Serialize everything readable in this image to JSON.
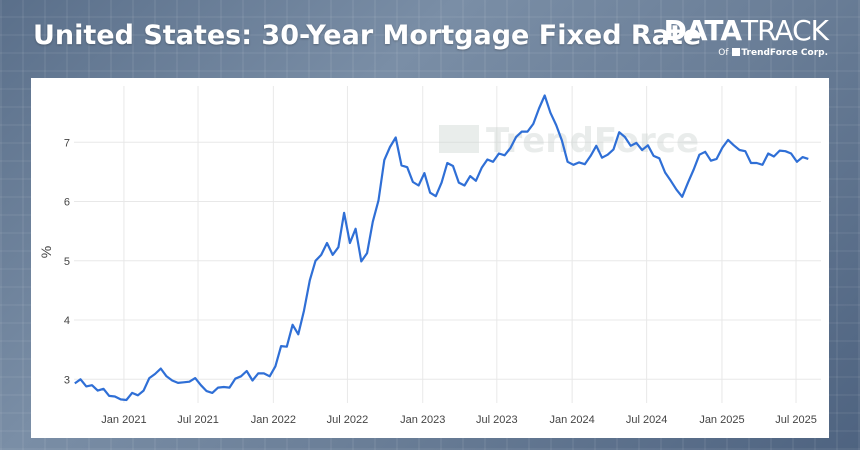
{
  "header": {
    "title": "United States: 30-Year Mortgage Fixed Rate"
  },
  "brand": {
    "name_bold": "DATA",
    "name_light": "TRACK",
    "tagline_prefix": "Of",
    "tagline_corp": "TrendForce Corp."
  },
  "watermark": "TrendForce",
  "colors": {
    "line": "#2f6fd6",
    "grid": "#e8e8e8",
    "accent_brand": "#ffffff"
  },
  "chart_data": {
    "type": "line",
    "title": "United States: 30-Year Mortgage Fixed Rate",
    "xlabel": "",
    "ylabel": "%",
    "ylim": [
      2.6,
      7.95
    ],
    "xlim": [
      "2020-09-01",
      "2025-08-31"
    ],
    "grid": true,
    "x_ticks": [
      {
        "date": "2021-01-01",
        "label": "Jan 2021"
      },
      {
        "date": "2021-07-01",
        "label": "Jul 2021"
      },
      {
        "date": "2022-01-01",
        "label": "Jan 2022"
      },
      {
        "date": "2022-07-01",
        "label": "Jul 2022"
      },
      {
        "date": "2023-01-01",
        "label": "Jan 2023"
      },
      {
        "date": "2023-07-01",
        "label": "Jul 2023"
      },
      {
        "date": "2024-01-01",
        "label": "Jan 2024"
      },
      {
        "date": "2024-07-01",
        "label": "Jul 2024"
      },
      {
        "date": "2025-01-01",
        "label": "Jan 2025"
      },
      {
        "date": "2025-07-01",
        "label": "Jul 2025"
      }
    ],
    "y_ticks": [
      3,
      4,
      5,
      6,
      7
    ],
    "series": [
      {
        "color": "#2f6fd6",
        "x": [
          "2020-09-03",
          "2020-09-17",
          "2020-10-01",
          "2020-10-15",
          "2020-10-29",
          "2020-11-12",
          "2020-11-26",
          "2020-12-10",
          "2020-12-24",
          "2021-01-07",
          "2021-01-21",
          "2021-02-04",
          "2021-02-18",
          "2021-03-04",
          "2021-03-18",
          "2021-04-01",
          "2021-04-15",
          "2021-04-29",
          "2021-05-13",
          "2021-05-27",
          "2021-06-10",
          "2021-06-24",
          "2021-07-08",
          "2021-07-22",
          "2021-08-05",
          "2021-08-19",
          "2021-09-02",
          "2021-09-16",
          "2021-09-30",
          "2021-10-14",
          "2021-10-28",
          "2021-11-11",
          "2021-11-25",
          "2021-12-09",
          "2021-12-23",
          "2022-01-06",
          "2022-01-20",
          "2022-02-03",
          "2022-02-17",
          "2022-03-03",
          "2022-03-17",
          "2022-03-31",
          "2022-04-14",
          "2022-04-28",
          "2022-05-12",
          "2022-05-26",
          "2022-06-09",
          "2022-06-23",
          "2022-07-07",
          "2022-07-21",
          "2022-08-04",
          "2022-08-18",
          "2022-09-01",
          "2022-09-15",
          "2022-09-29",
          "2022-10-13",
          "2022-10-27",
          "2022-11-10",
          "2022-11-24",
          "2022-12-08",
          "2022-12-22",
          "2023-01-05",
          "2023-01-19",
          "2023-02-02",
          "2023-02-16",
          "2023-03-02",
          "2023-03-16",
          "2023-03-30",
          "2023-04-13",
          "2023-04-27",
          "2023-05-11",
          "2023-05-25",
          "2023-06-08",
          "2023-06-22",
          "2023-07-06",
          "2023-07-20",
          "2023-08-03",
          "2023-08-17",
          "2023-08-31",
          "2023-09-14",
          "2023-09-28",
          "2023-10-12",
          "2023-10-26",
          "2023-11-09",
          "2023-11-23",
          "2023-12-07",
          "2023-12-21",
          "2024-01-04",
          "2024-01-18",
          "2024-02-01",
          "2024-02-15",
          "2024-02-29",
          "2024-03-14",
          "2024-03-28",
          "2024-04-11",
          "2024-04-25",
          "2024-05-09",
          "2024-05-23",
          "2024-06-06",
          "2024-06-20",
          "2024-07-04",
          "2024-07-18",
          "2024-08-01",
          "2024-08-15",
          "2024-08-29",
          "2024-09-12",
          "2024-09-26",
          "2024-10-10",
          "2024-10-24",
          "2024-11-07",
          "2024-11-21",
          "2024-12-05",
          "2024-12-19",
          "2025-01-02",
          "2025-01-16",
          "2025-01-30",
          "2025-02-13",
          "2025-02-27",
          "2025-03-13",
          "2025-03-27",
          "2025-04-10",
          "2025-04-24",
          "2025-05-08",
          "2025-05-22",
          "2025-06-05",
          "2025-06-19",
          "2025-07-03",
          "2025-07-17",
          "2025-07-31"
        ],
        "y": [
          2.93,
          3.0,
          2.88,
          2.9,
          2.81,
          2.84,
          2.72,
          2.71,
          2.66,
          2.65,
          2.77,
          2.73,
          2.81,
          3.02,
          3.09,
          3.18,
          3.05,
          2.98,
          2.94,
          2.95,
          2.96,
          3.02,
          2.9,
          2.8,
          2.77,
          2.86,
          2.87,
          2.86,
          3.01,
          3.05,
          3.14,
          2.98,
          3.1,
          3.1,
          3.05,
          3.22,
          3.56,
          3.55,
          3.92,
          3.76,
          4.16,
          4.67,
          5.0,
          5.1,
          5.3,
          5.1,
          5.23,
          5.81,
          5.3,
          5.54,
          4.99,
          5.13,
          5.66,
          6.02,
          6.7,
          6.92,
          7.08,
          6.61,
          6.58,
          6.33,
          6.27,
          6.48,
          6.15,
          6.09,
          6.32,
          6.65,
          6.6,
          6.32,
          6.27,
          6.43,
          6.35,
          6.57,
          6.71,
          6.67,
          6.81,
          6.78,
          6.9,
          7.09,
          7.18,
          7.18,
          7.31,
          7.57,
          7.79,
          7.5,
          7.29,
          7.03,
          6.67,
          6.62,
          6.66,
          6.63,
          6.77,
          6.94,
          6.74,
          6.79,
          6.88,
          7.17,
          7.09,
          6.94,
          6.99,
          6.87,
          6.95,
          6.77,
          6.73,
          6.49,
          6.35,
          6.2,
          6.08,
          6.32,
          6.54,
          6.79,
          6.84,
          6.69,
          6.72,
          6.91,
          7.04,
          6.95,
          6.87,
          6.85,
          6.65,
          6.65,
          6.62,
          6.81,
          6.76,
          6.86,
          6.85,
          6.81,
          6.67,
          6.75,
          6.72
        ]
      }
    ]
  }
}
